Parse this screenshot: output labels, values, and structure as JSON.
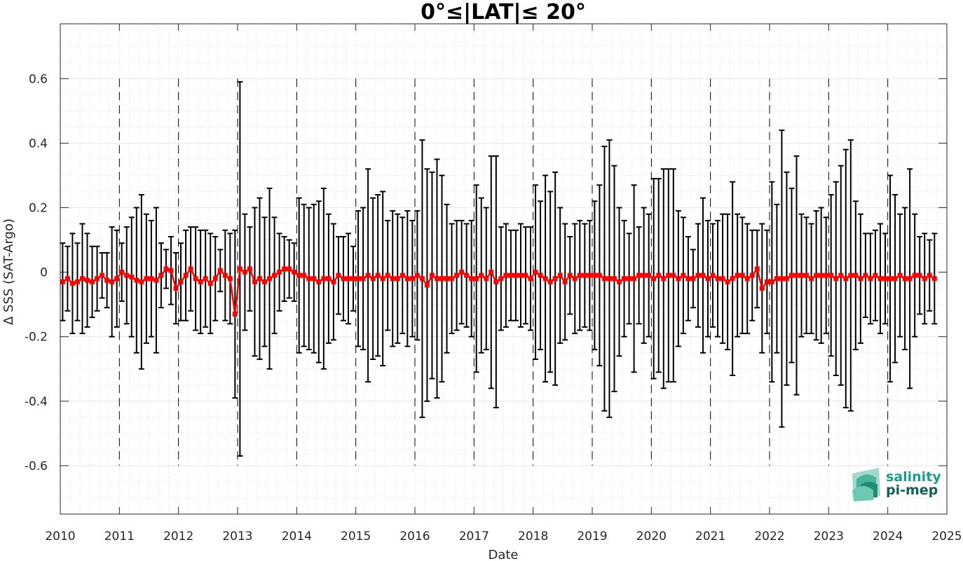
{
  "chart_data": {
    "type": "line",
    "title": "0°≤|LAT|≤ 20°",
    "xlabel": "Date",
    "ylabel": "Δ SSS (SAT-Argo)",
    "xlim": [
      "2010-01",
      "2025-01"
    ],
    "ylim": [
      -0.75,
      0.77
    ],
    "x_tick_labels": [
      "2010",
      "2011",
      "2012",
      "2013",
      "2014",
      "2015",
      "2016",
      "2017",
      "2018",
      "2019",
      "2020",
      "2021",
      "2022",
      "2023",
      "2024",
      "2025"
    ],
    "y_ticks": [
      -0.6,
      -0.4,
      -0.2,
      0,
      0.2,
      0.4,
      0.6
    ],
    "y_tick_labels": [
      "-0.6",
      "-0.4",
      "-0.2",
      "0",
      "0.2",
      "0.4",
      "0.6"
    ],
    "grid": "minor dotted",
    "year_boundaries": "dashed vertical lines at each year",
    "series": [
      {
        "color": "#ff0000",
        "marker": "square",
        "error_bar_color": "#000000",
        "x": [
          "2010-01",
          "2010-02",
          "2010-03",
          "2010-04",
          "2010-05",
          "2010-06",
          "2010-07",
          "2010-08",
          "2010-09",
          "2010-10",
          "2010-11",
          "2010-12",
          "2011-01",
          "2011-02",
          "2011-03",
          "2011-04",
          "2011-05",
          "2011-06",
          "2011-07",
          "2011-08",
          "2011-09",
          "2011-10",
          "2011-11",
          "2011-12",
          "2012-01",
          "2012-02",
          "2012-03",
          "2012-04",
          "2012-05",
          "2012-06",
          "2012-07",
          "2012-08",
          "2012-09",
          "2012-10",
          "2012-11",
          "2012-12",
          "2013-01",
          "2013-02",
          "2013-03",
          "2013-04",
          "2013-05",
          "2013-06",
          "2013-07",
          "2013-08",
          "2013-09",
          "2013-10",
          "2013-11",
          "2013-12",
          "2014-01",
          "2014-02",
          "2014-03",
          "2014-04",
          "2014-05",
          "2014-06",
          "2014-07",
          "2014-08",
          "2014-09",
          "2014-10",
          "2014-11",
          "2014-12",
          "2015-01",
          "2015-02",
          "2015-03",
          "2015-04",
          "2015-05",
          "2015-06",
          "2015-07",
          "2015-08",
          "2015-09",
          "2015-10",
          "2015-11",
          "2015-12",
          "2016-01",
          "2016-02",
          "2016-03",
          "2016-04",
          "2016-05",
          "2016-06",
          "2016-07",
          "2016-08",
          "2016-09",
          "2016-10",
          "2016-11",
          "2016-12",
          "2017-01",
          "2017-02",
          "2017-03",
          "2017-04",
          "2017-05",
          "2017-06",
          "2017-07",
          "2017-08",
          "2017-09",
          "2017-10",
          "2017-11",
          "2017-12",
          "2018-01",
          "2018-02",
          "2018-03",
          "2018-04",
          "2018-05",
          "2018-06",
          "2018-07",
          "2018-08",
          "2018-09",
          "2018-10",
          "2018-11",
          "2018-12",
          "2019-01",
          "2019-02",
          "2019-03",
          "2019-04",
          "2019-05",
          "2019-06",
          "2019-07",
          "2019-08",
          "2019-09",
          "2019-10",
          "2019-11",
          "2019-12",
          "2020-01",
          "2020-02",
          "2020-03",
          "2020-04",
          "2020-05",
          "2020-06",
          "2020-07",
          "2020-08",
          "2020-09",
          "2020-10",
          "2020-11",
          "2020-12",
          "2021-01",
          "2021-02",
          "2021-03",
          "2021-04",
          "2021-05",
          "2021-06",
          "2021-07",
          "2021-08",
          "2021-09",
          "2021-10",
          "2021-11",
          "2021-12",
          "2022-01",
          "2022-02",
          "2022-03",
          "2022-04",
          "2022-05",
          "2022-06",
          "2022-07",
          "2022-08",
          "2022-09",
          "2022-10",
          "2022-11",
          "2022-12",
          "2023-01",
          "2023-02",
          "2023-03",
          "2023-04",
          "2023-05",
          "2023-06",
          "2023-07",
          "2023-08",
          "2023-09",
          "2023-10",
          "2023-11",
          "2023-12",
          "2024-01",
          "2024-02",
          "2024-03",
          "2024-04",
          "2024-05",
          "2024-06",
          "2024-07",
          "2024-08",
          "2024-09",
          "2024-10"
        ],
        "mean": [
          -0.03,
          -0.02,
          -0.035,
          -0.03,
          -0.02,
          -0.025,
          -0.03,
          -0.02,
          -0.01,
          -0.025,
          -0.03,
          -0.02,
          0.0,
          -0.01,
          -0.015,
          -0.025,
          -0.03,
          -0.02,
          -0.02,
          -0.025,
          -0.01,
          0.01,
          0.005,
          -0.05,
          -0.03,
          -0.01,
          0.01,
          -0.02,
          -0.03,
          -0.02,
          -0.035,
          -0.02,
          0.005,
          -0.01,
          -0.02,
          -0.13,
          0.01,
          0.0,
          0.01,
          -0.03,
          -0.02,
          -0.03,
          -0.02,
          -0.01,
          0.0,
          0.01,
          0.01,
          0.0,
          -0.01,
          -0.01,
          -0.02,
          -0.02,
          -0.03,
          -0.02,
          -0.02,
          -0.03,
          -0.01,
          -0.02,
          -0.02,
          -0.02,
          -0.02,
          -0.02,
          -0.01,
          -0.02,
          -0.01,
          -0.02,
          -0.01,
          -0.02,
          -0.02,
          -0.01,
          -0.02,
          -0.02,
          -0.01,
          -0.02,
          -0.04,
          -0.01,
          -0.02,
          -0.02,
          -0.02,
          -0.02,
          -0.01,
          0.0,
          -0.01,
          -0.02,
          -0.02,
          -0.01,
          -0.02,
          0.0,
          -0.03,
          -0.02,
          -0.01,
          -0.01,
          -0.01,
          -0.01,
          -0.01,
          -0.02,
          0.0,
          -0.01,
          -0.02,
          -0.03,
          -0.02,
          -0.01,
          -0.03,
          -0.01,
          -0.02,
          -0.01,
          -0.01,
          -0.01,
          -0.01,
          -0.01,
          -0.02,
          -0.02,
          -0.02,
          -0.03,
          -0.02,
          -0.02,
          -0.02,
          -0.01,
          -0.01,
          -0.01,
          -0.02,
          -0.01,
          -0.02,
          -0.01,
          -0.01,
          -0.02,
          -0.01,
          -0.02,
          -0.02,
          -0.01,
          -0.01,
          -0.02,
          -0.01,
          -0.02,
          -0.02,
          -0.03,
          -0.02,
          -0.01,
          -0.01,
          -0.02,
          -0.01,
          0.01,
          -0.05,
          -0.03,
          -0.03,
          -0.02,
          -0.02,
          -0.02,
          -0.01,
          -0.01,
          -0.01,
          -0.01,
          -0.02,
          -0.01,
          -0.01,
          -0.01,
          -0.01,
          -0.02,
          -0.01,
          -0.02,
          -0.01,
          -0.01,
          -0.02,
          -0.01,
          -0.02,
          -0.01,
          -0.02,
          -0.02,
          -0.02,
          -0.02,
          -0.01,
          -0.02,
          -0.02,
          -0.01,
          -0.01,
          -0.02,
          -0.01,
          -0.02
        ],
        "upper": [
          0.09,
          0.08,
          0.12,
          0.09,
          0.15,
          0.12,
          0.08,
          0.08,
          0.06,
          0.06,
          0.14,
          0.13,
          0.09,
          0.14,
          0.17,
          0.2,
          0.24,
          0.18,
          0.16,
          0.2,
          0.09,
          0.07,
          0.11,
          0.06,
          0.09,
          0.13,
          0.14,
          0.14,
          0.13,
          0.13,
          0.12,
          0.11,
          0.07,
          0.13,
          0.12,
          0.13,
          0.59,
          0.18,
          0.14,
          0.2,
          0.23,
          0.17,
          0.26,
          0.17,
          0.12,
          0.11,
          0.1,
          0.09,
          0.23,
          0.21,
          0.2,
          0.21,
          0.22,
          0.26,
          0.18,
          0.15,
          0.11,
          0.11,
          0.12,
          0.08,
          0.19,
          0.2,
          0.32,
          0.23,
          0.24,
          0.25,
          0.16,
          0.19,
          0.18,
          0.17,
          0.19,
          0.16,
          0.19,
          0.41,
          0.32,
          0.31,
          0.35,
          0.3,
          0.21,
          0.15,
          0.16,
          0.16,
          0.15,
          0.16,
          0.27,
          0.23,
          0.2,
          0.36,
          0.36,
          0.14,
          0.15,
          0.13,
          0.13,
          0.15,
          0.14,
          0.14,
          0.27,
          0.22,
          0.3,
          0.25,
          0.31,
          0.2,
          0.15,
          0.11,
          0.15,
          0.16,
          0.15,
          0.16,
          0.22,
          0.27,
          0.39,
          0.41,
          0.33,
          0.2,
          0.16,
          0.12,
          0.27,
          0.14,
          0.2,
          0.18,
          0.29,
          0.29,
          0.32,
          0.32,
          0.32,
          0.19,
          0.17,
          0.11,
          0.07,
          0.15,
          0.23,
          0.16,
          0.15,
          0.16,
          0.18,
          0.18,
          0.28,
          0.18,
          0.17,
          0.15,
          0.13,
          0.13,
          0.15,
          0.13,
          0.28,
          0.21,
          0.44,
          0.31,
          0.26,
          0.36,
          0.18,
          0.17,
          0.15,
          0.19,
          0.2,
          0.17,
          0.24,
          0.28,
          0.33,
          0.38,
          0.41,
          0.22,
          0.18,
          0.12,
          0.12,
          0.13,
          0.15,
          0.12,
          0.3,
          0.24,
          0.18,
          0.2,
          0.32,
          0.18,
          0.11,
          0.12,
          0.1,
          0.12
        ]
      }
    ]
  },
  "logo": {
    "line1": "salinity",
    "line2": "pi-mep"
  }
}
